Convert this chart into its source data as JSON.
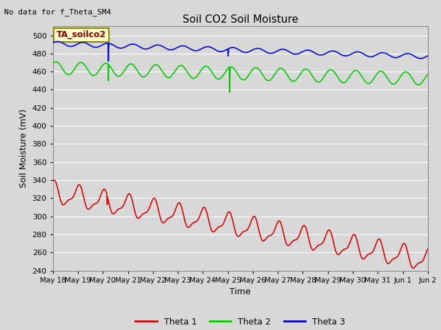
{
  "title": "Soil CO2 Soil Moisture",
  "no_data_label": "No data for f_Theta_SM4",
  "ta_label": "TA_soilco2",
  "ylabel": "Soil Moisture (mV)",
  "xlabel": "Time",
  "ylim": [
    240,
    510
  ],
  "yticks": [
    240,
    260,
    280,
    300,
    320,
    340,
    360,
    380,
    400,
    420,
    440,
    460,
    480,
    500
  ],
  "background_color": "#d8d8d8",
  "plot_bg_color": "#d8d8d8",
  "grid_color": "#ffffff",
  "theta1_color": "#dd0000",
  "theta2_color": "#00cc00",
  "theta3_color": "#0000dd",
  "x_labels": [
    "May 18",
    "May 19",
    "May 20",
    "May 21",
    "May 22",
    "May 23",
    "May 24",
    "May 25",
    "May 26",
    "May 27",
    "May 28",
    "May 29",
    "May 30",
    "May 31",
    "Jun 1",
    "Jun 2"
  ],
  "num_points": 1500
}
